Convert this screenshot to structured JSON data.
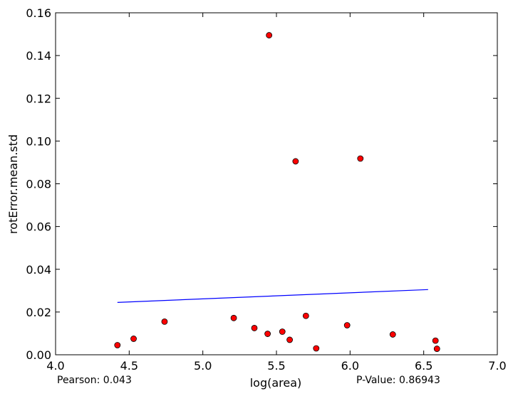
{
  "chart_data": {
    "type": "scatter",
    "title": "",
    "xlabel": "log(area)",
    "ylabel": "rotError.mean.std",
    "xlim": [
      4.0,
      7.0
    ],
    "ylim": [
      0.0,
      0.16
    ],
    "xticks": [
      "4.0",
      "4.5",
      "5.0",
      "5.5",
      "6.0",
      "6.5",
      "7.0"
    ],
    "yticks": [
      "0.00",
      "0.02",
      "0.04",
      "0.06",
      "0.08",
      "0.10",
      "0.12",
      "0.14",
      "0.16"
    ],
    "grid": false,
    "series": [
      {
        "kind": "points",
        "color": "#ff0000",
        "x": [
          4.42,
          4.53,
          4.74,
          5.21,
          5.35,
          5.44,
          5.45,
          5.54,
          5.59,
          5.63,
          5.7,
          5.77,
          5.98,
          6.07,
          6.29,
          6.58,
          6.59
        ],
        "y": [
          0.0045,
          0.0075,
          0.0155,
          0.0172,
          0.0125,
          0.0098,
          0.1495,
          0.0108,
          0.007,
          0.0905,
          0.0182,
          0.003,
          0.0138,
          0.0918,
          0.0095,
          0.0066,
          0.0028
        ]
      },
      {
        "kind": "fit-line",
        "color": "#0000ff",
        "x": [
          4.42,
          6.53
        ],
        "y": [
          0.0245,
          0.0305
        ]
      }
    ]
  },
  "stats": {
    "pearson_label": "Pearson: 0.043",
    "pvalue_label": "P-Value: 0.86943"
  }
}
